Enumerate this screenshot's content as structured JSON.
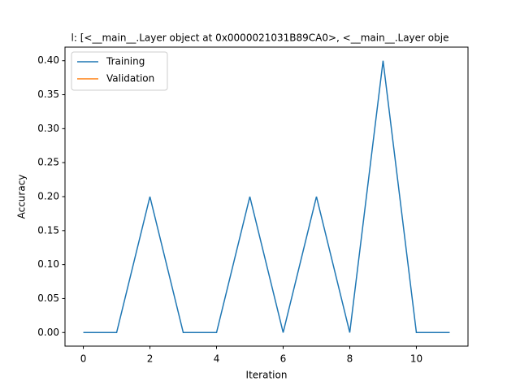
{
  "chart_data": {
    "type": "line",
    "title": "l: [<__main__.Layer object at 0x0000021031B89CA0>, <__main__.Layer obje",
    "x_label": "Iteration",
    "y_label": "Accuracy",
    "x": [
      0,
      1,
      2,
      3,
      4,
      5,
      6,
      7,
      8,
      9,
      10,
      11
    ],
    "series": [
      {
        "name": "Training",
        "color": "#1f77b4",
        "values": [
          0,
          0,
          0.2,
          0,
          0,
          0.2,
          0,
          0.2,
          0,
          0.4,
          0,
          0
        ]
      },
      {
        "name": "Validation",
        "color": "#ff7f0e",
        "values": [
          null,
          null,
          null,
          null,
          null,
          null,
          null,
          null,
          null,
          null,
          null,
          null
        ]
      }
    ],
    "xlim": [
      -0.55,
      11.55
    ],
    "xticks": [
      0,
      2,
      4,
      6,
      8,
      10
    ],
    "ylim": [
      -0.02,
      0.42
    ],
    "yticks": [
      {
        "value": 0,
        "label": "0.00"
      },
      {
        "value": 0.05,
        "label": "0.05"
      },
      {
        "value": 0.1,
        "label": "0.10"
      },
      {
        "value": 0.15,
        "label": "0.15"
      },
      {
        "value": 0.2,
        "label": "0.20"
      },
      {
        "value": 0.25,
        "label": "0.25"
      },
      {
        "value": 0.3,
        "label": "0.30"
      },
      {
        "value": 0.35,
        "label": "0.35"
      },
      {
        "value": 0.4,
        "label": "0.40"
      }
    ],
    "grid": false,
    "legend": "upper left"
  }
}
